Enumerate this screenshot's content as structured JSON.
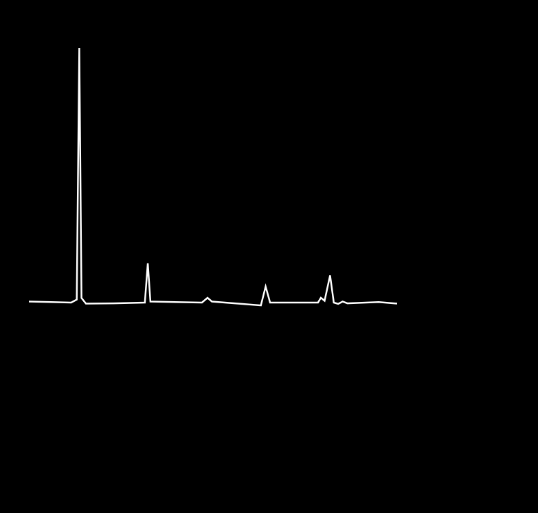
{
  "chart_data": {
    "type": "line",
    "title": "",
    "xlabel": "",
    "ylabel": "",
    "grid": false,
    "axes_visible": false,
    "background_color": "#000000",
    "xlim": [
      0,
      100
    ],
    "ylim": [
      -10,
      100
    ],
    "series": [
      {
        "color": "#ffffff",
        "points": [
          [
            0,
            0.4
          ],
          [
            6,
            0.2
          ],
          [
            11.5,
            0
          ],
          [
            13,
            1.2
          ],
          [
            13.7,
            100
          ],
          [
            14.3,
            1.8
          ],
          [
            15.5,
            -0.4
          ],
          [
            23,
            -0.3
          ],
          [
            31.5,
            0
          ],
          [
            32.3,
            15.4
          ],
          [
            33,
            0.4
          ],
          [
            47,
            0
          ],
          [
            48.5,
            1.9
          ],
          [
            49.7,
            0.4
          ],
          [
            63,
            -1.1
          ],
          [
            64.3,
            6.3
          ],
          [
            65.5,
            0
          ],
          [
            78.5,
            0
          ],
          [
            79.3,
            1.9
          ],
          [
            80.3,
            0.7
          ],
          [
            81.8,
            10.7
          ],
          [
            82.8,
            0
          ],
          [
            84,
            -0.5
          ],
          [
            85.2,
            0.4
          ],
          [
            86.5,
            -0.3
          ],
          [
            95,
            0.2
          ],
          [
            100,
            -0.4
          ]
        ]
      }
    ]
  }
}
